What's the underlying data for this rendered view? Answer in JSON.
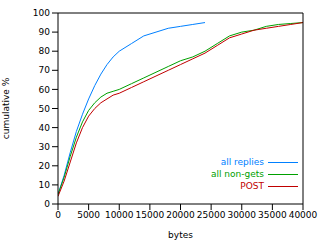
{
  "chart_data": {
    "type": "line",
    "x_label": "bytes",
    "y_label": "cumulative %",
    "x": [
      0,
      1000,
      2000,
      3000,
      4000,
      5000,
      6000,
      7000,
      8000,
      9000,
      10000,
      12000,
      14000,
      16000,
      18000,
      20000,
      22000,
      24000,
      26000,
      28000,
      30000,
      32000,
      34000,
      36000,
      38000,
      40000
    ],
    "series": [
      {
        "name": "all replies",
        "color": "#0080ff",
        "values": [
          5,
          15,
          27,
          38,
          47,
          55,
          62,
          68,
          73,
          77,
          80,
          84,
          88,
          90,
          92,
          93,
          94,
          95,
          null,
          null,
          null,
          null,
          null,
          null,
          null,
          null
        ]
      },
      {
        "name": "all non-gets",
        "color": "#00a000",
        "values": [
          5,
          14,
          25,
          35,
          43,
          49,
          53,
          56,
          58,
          59,
          60,
          63,
          66,
          69,
          72,
          75,
          77,
          80,
          84,
          88,
          90,
          91,
          93,
          94,
          94.5,
          95
        ]
      },
      {
        "name": "POST",
        "color": "#c00000",
        "values": [
          4,
          12,
          22,
          32,
          40,
          46,
          50,
          53,
          55,
          57,
          58,
          61,
          64,
          67,
          70,
          73,
          76,
          79,
          83,
          87,
          89,
          91,
          92,
          93,
          94,
          95
        ]
      }
    ],
    "xlim": [
      0,
      40000
    ],
    "xticks": [
      0,
      5000,
      10000,
      15000,
      20000,
      25000,
      30000,
      35000,
      40000
    ],
    "ylim": [
      0,
      100
    ],
    "yticks": [
      0,
      10,
      20,
      30,
      40,
      50,
      60,
      70,
      80,
      90,
      100
    ],
    "legend": "lower right",
    "grid": false
  }
}
